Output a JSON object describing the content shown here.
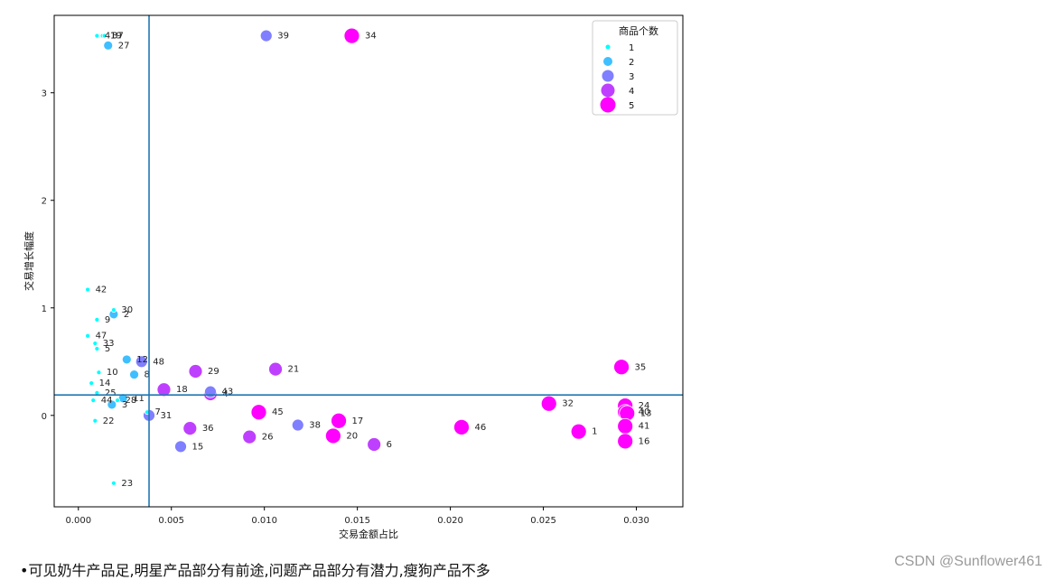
{
  "chart_data": {
    "type": "scatter",
    "xlabel": "交易金额占比",
    "ylabel": "交易增长幅度",
    "xlim": [
      -0.0013,
      0.0325
    ],
    "ylim": [
      -0.85,
      3.72
    ],
    "xticks": [
      0.0,
      0.005,
      0.01,
      0.015,
      0.02,
      0.025,
      0.03
    ],
    "xtick_labels": [
      "0.000",
      "0.005",
      "0.010",
      "0.015",
      "0.020",
      "0.025",
      "0.030"
    ],
    "yticks": [
      0,
      1,
      2,
      3
    ],
    "ytick_labels": [
      "0",
      "1",
      "2",
      "3"
    ],
    "grid": false,
    "reference_lines": {
      "vertical_x": 0.0038,
      "horizontal_y": 0.19
    },
    "legend": {
      "title": "商品个数",
      "placement": "top-right",
      "entries": [
        {
          "label": "1",
          "size": 1,
          "color": "#00ffff"
        },
        {
          "label": "2",
          "size": 2,
          "color": "#3fbfff"
        },
        {
          "label": "3",
          "size": 3,
          "color": "#7f7fff"
        },
        {
          "label": "4",
          "size": 4,
          "color": "#bf3fff"
        },
        {
          "label": "5",
          "size": 5,
          "color": "#ff00ff"
        }
      ]
    },
    "points": [
      {
        "label": "41",
        "x": 0.001,
        "y": 3.53,
        "size": 1
      },
      {
        "label": "19",
        "x": 0.0013,
        "y": 3.53,
        "size": 1
      },
      {
        "label": "37",
        "x": 0.0014,
        "y": 3.53,
        "size": 1
      },
      {
        "label": "27",
        "x": 0.0016,
        "y": 3.44,
        "size": 2
      },
      {
        "label": "39",
        "x": 0.0101,
        "y": 3.53,
        "size": 3
      },
      {
        "label": "34",
        "x": 0.0147,
        "y": 3.53,
        "size": 5
      },
      {
        "label": "42",
        "x": 0.0005,
        "y": 1.17,
        "size": 1
      },
      {
        "label": "30",
        "x": 0.0019,
        "y": 0.98,
        "size": 1
      },
      {
        "label": "2",
        "x": 0.0019,
        "y": 0.94,
        "size": 2
      },
      {
        "label": "9",
        "x": 0.001,
        "y": 0.89,
        "size": 1
      },
      {
        "label": "47",
        "x": 0.0005,
        "y": 0.74,
        "size": 1
      },
      {
        "label": "33",
        "x": 0.0009,
        "y": 0.67,
        "size": 1
      },
      {
        "label": "5",
        "x": 0.001,
        "y": 0.62,
        "size": 1
      },
      {
        "label": "12",
        "x": 0.0026,
        "y": 0.52,
        "size": 2
      },
      {
        "label": "48",
        "x": 0.0034,
        "y": 0.5,
        "size": 3
      },
      {
        "label": "10",
        "x": 0.0011,
        "y": 0.4,
        "size": 1
      },
      {
        "label": "8",
        "x": 0.003,
        "y": 0.38,
        "size": 2
      },
      {
        "label": "14",
        "x": 0.0007,
        "y": 0.3,
        "size": 1
      },
      {
        "label": "25",
        "x": 0.001,
        "y": 0.21,
        "size": 1
      },
      {
        "label": "28",
        "x": 0.0021,
        "y": 0.14,
        "size": 1
      },
      {
        "label": "11",
        "x": 0.0024,
        "y": 0.16,
        "size": 2
      },
      {
        "label": "44",
        "x": 0.0008,
        "y": 0.14,
        "size": 1
      },
      {
        "label": "3",
        "x": 0.0018,
        "y": 0.1,
        "size": 2
      },
      {
        "label": "7",
        "x": 0.0037,
        "y": 0.03,
        "size": 1
      },
      {
        "label": "31",
        "x": 0.0038,
        "y": 0.0,
        "size": 3
      },
      {
        "label": "22",
        "x": 0.0009,
        "y": -0.05,
        "size": 1
      },
      {
        "label": "23",
        "x": 0.0019,
        "y": -0.63,
        "size": 1
      },
      {
        "label": "29",
        "x": 0.0063,
        "y": 0.41,
        "size": 4
      },
      {
        "label": "21",
        "x": 0.0106,
        "y": 0.43,
        "size": 4
      },
      {
        "label": "18",
        "x": 0.0046,
        "y": 0.24,
        "size": 4
      },
      {
        "label": "4",
        "x": 0.0071,
        "y": 0.2,
        "size": 4
      },
      {
        "label": "43",
        "x": 0.0071,
        "y": 0.22,
        "size": 3
      },
      {
        "label": "45",
        "x": 0.0097,
        "y": 0.03,
        "size": 5
      },
      {
        "label": "17",
        "x": 0.014,
        "y": -0.05,
        "size": 5
      },
      {
        "label": "38",
        "x": 0.0118,
        "y": -0.09,
        "size": 3
      },
      {
        "label": "36",
        "x": 0.006,
        "y": -0.12,
        "size": 4
      },
      {
        "label": "26",
        "x": 0.0092,
        "y": -0.2,
        "size": 4
      },
      {
        "label": "20",
        "x": 0.0137,
        "y": -0.19,
        "size": 5
      },
      {
        "label": "6",
        "x": 0.0159,
        "y": -0.27,
        "size": 4
      },
      {
        "label": "15",
        "x": 0.0055,
        "y": -0.29,
        "size": 3
      },
      {
        "label": "46",
        "x": 0.0206,
        "y": -0.11,
        "size": 5
      },
      {
        "label": "32",
        "x": 0.0253,
        "y": 0.11,
        "size": 5
      },
      {
        "label": "1",
        "x": 0.0269,
        "y": -0.15,
        "size": 5
      },
      {
        "label": "35",
        "x": 0.0292,
        "y": 0.45,
        "size": 5
      },
      {
        "label": "24",
        "x": 0.0294,
        "y": 0.09,
        "size": 5
      },
      {
        "label": "40",
        "x": 0.0294,
        "y": 0.03,
        "size": 5
      },
      {
        "label": "13",
        "x": 0.0295,
        "y": 0.02,
        "size": 5
      },
      {
        "label": "41",
        "x": 0.0294,
        "y": -0.1,
        "size": 5
      },
      {
        "label": "16",
        "x": 0.0294,
        "y": -0.24,
        "size": 5
      }
    ]
  },
  "caption": "•可见奶牛产品足,明星产品部分有前途,问题产品部分有潜力,瘦狗产品不多",
  "watermark": "CSDN @Sunflower461"
}
